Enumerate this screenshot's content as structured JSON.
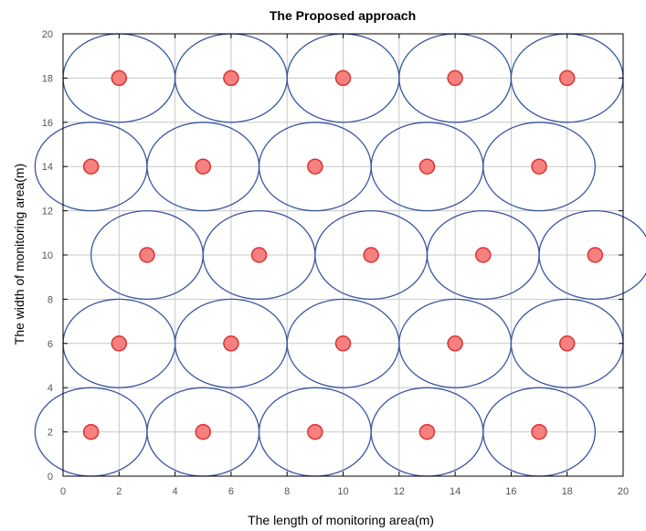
{
  "chart_data": {
    "type": "scatter",
    "title": "The Proposed approach",
    "xlabel": "The length of monitoring area(m)",
    "ylabel": "The width of monitoring area(m)",
    "xlim": [
      0,
      20
    ],
    "ylim": [
      0,
      20
    ],
    "xticks": [
      0,
      2,
      4,
      6,
      8,
      10,
      12,
      14,
      16,
      18,
      20
    ],
    "yticks": [
      0,
      2,
      4,
      6,
      8,
      10,
      12,
      14,
      16,
      18,
      20
    ],
    "grid": true,
    "coverage_radius": 2,
    "colors": {
      "node_fill": "#f48080",
      "node_edge": "#e03030",
      "circle_edge": "#3a55a0",
      "grid": "#c8c8c8",
      "axis": "#000000"
    },
    "points": [
      {
        "x": 2,
        "y": 18
      },
      {
        "x": 6,
        "y": 18
      },
      {
        "x": 10,
        "y": 18
      },
      {
        "x": 14,
        "y": 18
      },
      {
        "x": 18,
        "y": 18
      },
      {
        "x": 1,
        "y": 14
      },
      {
        "x": 5,
        "y": 14
      },
      {
        "x": 9,
        "y": 14
      },
      {
        "x": 13,
        "y": 14
      },
      {
        "x": 17,
        "y": 14
      },
      {
        "x": 3,
        "y": 10
      },
      {
        "x": 7,
        "y": 10
      },
      {
        "x": 11,
        "y": 10
      },
      {
        "x": 15,
        "y": 10
      },
      {
        "x": 19,
        "y": 10
      },
      {
        "x": 2,
        "y": 6
      },
      {
        "x": 6,
        "y": 6
      },
      {
        "x": 10,
        "y": 6
      },
      {
        "x": 14,
        "y": 6
      },
      {
        "x": 18,
        "y": 6
      },
      {
        "x": 1,
        "y": 2
      },
      {
        "x": 5,
        "y": 2
      },
      {
        "x": 9,
        "y": 2
      },
      {
        "x": 13,
        "y": 2
      },
      {
        "x": 17,
        "y": 2
      }
    ]
  }
}
